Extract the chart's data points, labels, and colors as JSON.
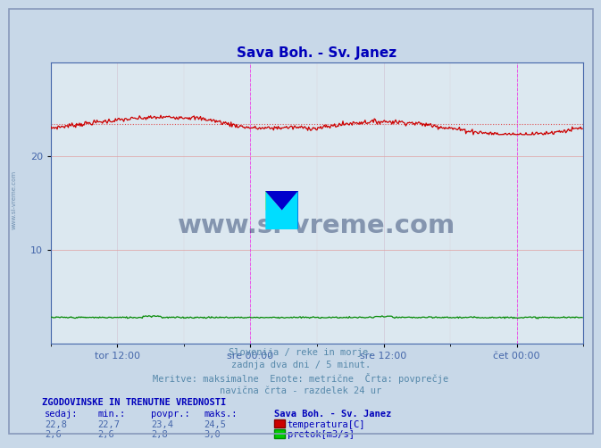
{
  "title": "Sava Boh. - Sv. Janez",
  "title_color": "#0000bb",
  "bg_color": "#c8d8e8",
  "plot_bg_color": "#dce8f0",
  "xlim": [
    0,
    576
  ],
  "ylim": [
    0,
    30
  ],
  "yticks_major": [
    10,
    20
  ],
  "temp_avg": 23.4,
  "temp_min": 22.7,
  "temp_max": 24.5,
  "temp_current": 22.8,
  "flow_avg": 2.8,
  "flow_min": 2.6,
  "flow_max": 3.0,
  "flow_current": 2.6,
  "temp_color": "#cc0000",
  "flow_color": "#008800",
  "avg_line_color": "#dd2222",
  "vline_color": "#ee44ee",
  "tick_color": "#4466aa",
  "axis_color": "#4466aa",
  "watermark_text_color": "#1a3060",
  "info_text_color": "#5588aa",
  "label_color": "#0000bb",
  "n_points": 576,
  "x_tick_positions": [
    72,
    216,
    360,
    504
  ],
  "x_tick_labels": [
    "tor 12:00",
    "sre 00:00",
    "sre 12:00",
    "čet 00:00"
  ],
  "vline_positions": [
    216,
    504
  ],
  "info_lines": [
    "Slovenija / reke in morje.",
    "zadnja dva dni / 5 minut.",
    "Meritve: maksimalne  Enote: metrične  Črta: povprečje",
    "navična črta - razdelek 24 ur"
  ],
  "legend_title": "ZGODOVINSKE IN TRENUTNE VREDNOSTI",
  "legend_headers": [
    "sedaj:",
    "min.:",
    "povpr.:",
    "maks.:",
    "Sava Boh. - Sv. Janez"
  ],
  "legend_temp_row": [
    "22,8",
    "22,7",
    "23,4",
    "24,5"
  ],
  "legend_flow_row": [
    "2,6",
    "2,6",
    "2,8",
    "3,0"
  ],
  "legend_temp_label": "temperatura[C]",
  "legend_flow_label": "pretok[m3/s]"
}
